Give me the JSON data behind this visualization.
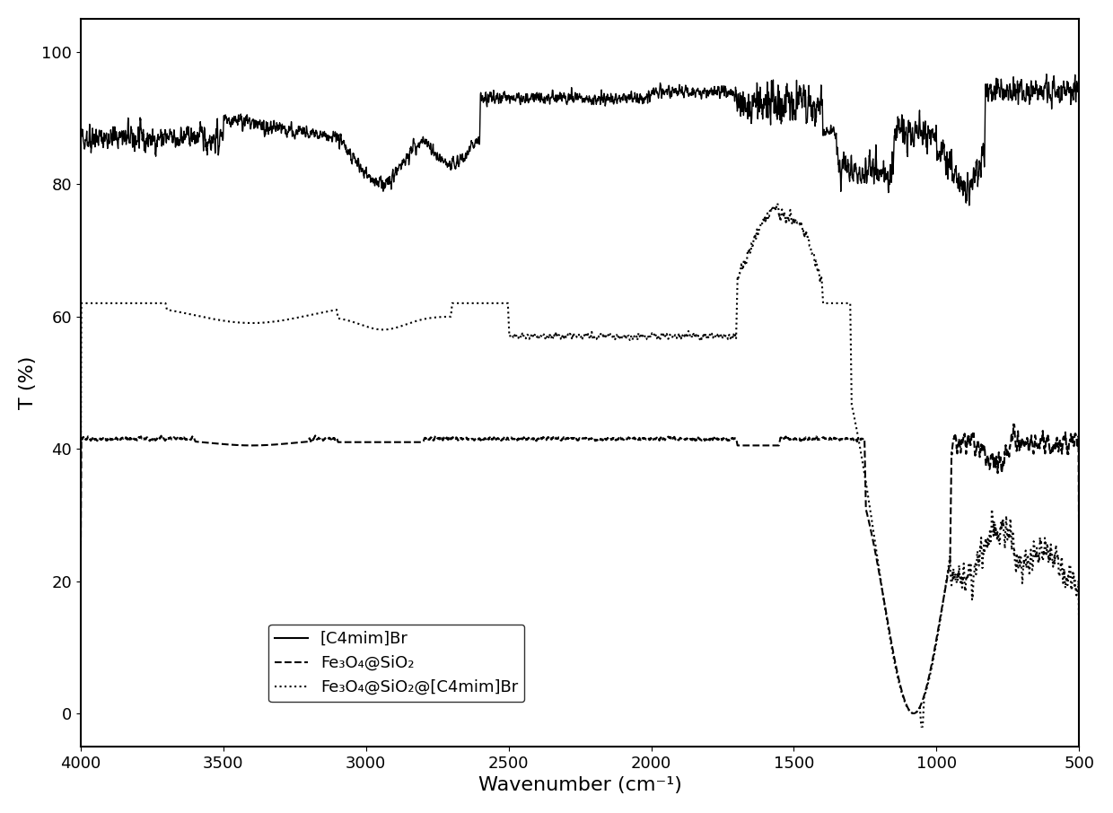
{
  "title": "",
  "xlabel": "Wavenumber (cm⁻¹)",
  "ylabel": "T (%)",
  "xlim": [
    4000,
    500
  ],
  "ylim": [
    -5,
    105
  ],
  "yticks": [
    0,
    20,
    40,
    60,
    80,
    100
  ],
  "xticks": [
    4000,
    3500,
    3000,
    2500,
    2000,
    1500,
    1000,
    500
  ],
  "background_color": "#ffffff",
  "line_color": "#000000",
  "legend_labels": [
    "[C4mim]Br",
    "Fe₃O₄@SiO₂",
    "Fe₃O₄@SiO₂@[C4mim]Br"
  ],
  "legend_styles": [
    "solid",
    "dashed",
    "dotted"
  ]
}
